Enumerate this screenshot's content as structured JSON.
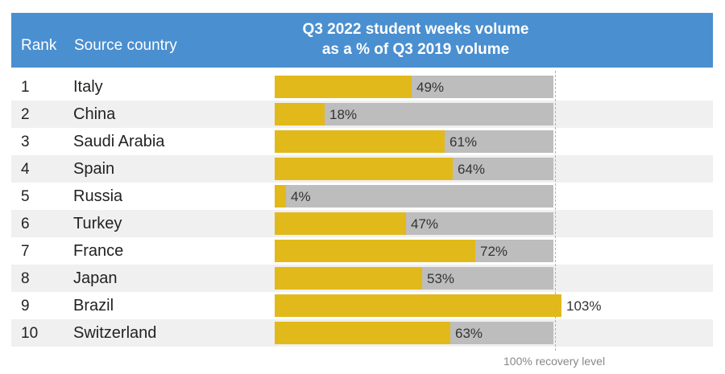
{
  "header": {
    "rank_label": "Rank",
    "country_label": "Source country",
    "title_line1": "Q3 2022 student weeks volume",
    "title_line2": "as a % of Q3 2019 volume"
  },
  "footnote": "100% recovery level",
  "colors": {
    "header": "#4a8fd0",
    "bar": "#e2b91a",
    "track": "#bdbdbd"
  },
  "chart_data": {
    "type": "bar",
    "orientation": "horizontal",
    "title": "Q3 2022 student weeks volume as a % of Q3 2019 volume",
    "xlim": [
      0,
      100
    ],
    "reference_line": {
      "value": 100,
      "label": "100% recovery level"
    },
    "rows": [
      {
        "rank": "1",
        "country": "Italy",
        "value": 49,
        "label": "49%"
      },
      {
        "rank": "2",
        "country": "China",
        "value": 18,
        "label": "18%"
      },
      {
        "rank": "3",
        "country": "Saudi Arabia",
        "value": 61,
        "label": "61%"
      },
      {
        "rank": "4",
        "country": "Spain",
        "value": 64,
        "label": "64%"
      },
      {
        "rank": "5",
        "country": "Russia",
        "value": 4,
        "label": "4%"
      },
      {
        "rank": "6",
        "country": "Turkey",
        "value": 47,
        "label": "47%"
      },
      {
        "rank": "7",
        "country": "France",
        "value": 72,
        "label": "72%"
      },
      {
        "rank": "8",
        "country": "Japan",
        "value": 53,
        "label": "53%"
      },
      {
        "rank": "9",
        "country": "Brazil",
        "value": 103,
        "label": "103%"
      },
      {
        "rank": "10",
        "country": "Switzerland",
        "value": 63,
        "label": "63%"
      }
    ]
  }
}
